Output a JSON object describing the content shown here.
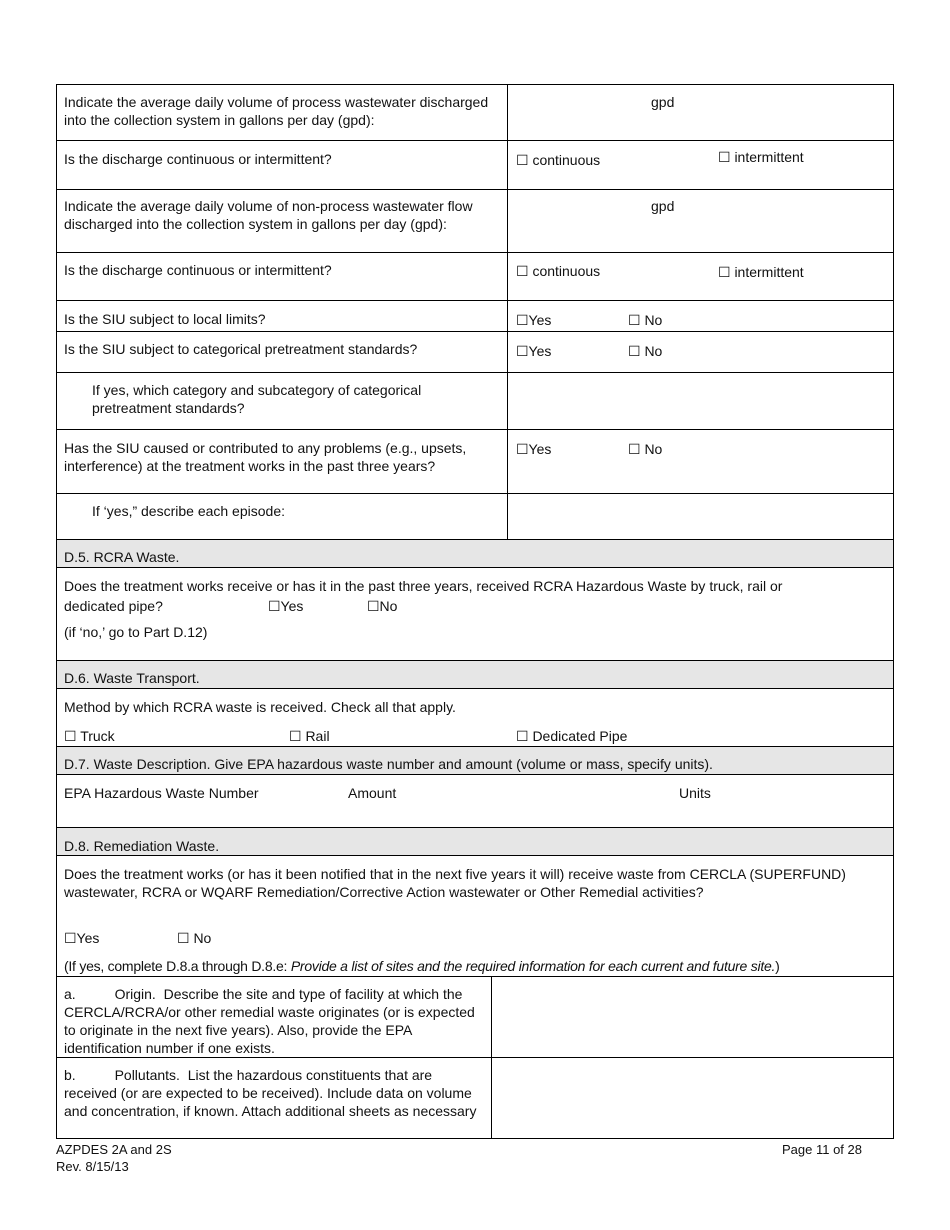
{
  "rows": {
    "process_volume": {
      "label": "Indicate the average daily volume of process wastewater discharged into the collection system in gallons per day (gpd):",
      "unit": "gpd"
    },
    "process_discharge": {
      "label": "Is the discharge continuous or intermittent?",
      "opt1": "☐ continuous",
      "opt2": "☐  intermittent"
    },
    "nonprocess_volume": {
      "label": "Indicate the average daily volume of non-process wastewater flow discharged into the collection system in gallons per day (gpd):",
      "unit": "gpd"
    },
    "nonprocess_discharge": {
      "label": "Is the discharge continuous or intermittent?",
      "opt1": "☐ continuous",
      "opt2": "☐  intermittent"
    },
    "local_limits": {
      "label": "Is the SIU subject to local limits?",
      "yes": "☐Yes",
      "no": "☐ No"
    },
    "categorical": {
      "label": "Is the SIU subject to categorical pretreatment standards?",
      "yes": "☐Yes",
      "no": "☐ No"
    },
    "category_which": {
      "label": "If yes, which category and subcategory of categorical pretreatment standards?"
    },
    "problems": {
      "label": "Has the SIU caused or contributed to any problems (e.g., upsets, interference) at the treatment works in the past three years?",
      "yes": "☐Yes",
      "no": "☐ No"
    },
    "episodes": {
      "label": "If ‘yes,” describe each episode:"
    }
  },
  "d5": {
    "header": "D.5.  RCRA Waste.",
    "question": "Does the treatment works receive or has it in the past three years, received RCRA Hazardous Waste by truck, rail or",
    "question2": "dedicated pipe?",
    "yes": "☐Yes",
    "no": "☐No",
    "note": "(if ‘no,’ go to Part D.12)"
  },
  "d6": {
    "header": "D.6.  Waste Transport.",
    "question": "Method by which RCRA waste is received.  Check all that apply.",
    "truck": "☐ Truck",
    "rail": "☐ Rail",
    "pipe": "☐ Dedicated Pipe"
  },
  "d7": {
    "header": "D.7.  Waste Description.  Give EPA hazardous waste number and amount (volume or mass, specify units).",
    "col1": "EPA Hazardous Waste Number",
    "col2": "Amount",
    "col3": "Units"
  },
  "d8": {
    "header": "D.8.  Remediation Waste.",
    "question": "Does the treatment works (or has it been notified that in the next five years it will) receive waste from CERCLA (SUPERFUND) wastewater, RCRA or WQARF Remediation/Corrective Action wastewater or Other Remedial activities?",
    "yes": "☐Yes",
    "no": "☐ No",
    "note_prefix": "(If yes, complete D.8.a through D.8.e: ",
    "note_italic": "Provide a list of sites and the required information for each current and future site.",
    "note_suffix": ")",
    "a": "a.          Origin.  Describe the site and type of facility at which the CERCLA/RCRA/or other remedial waste originates (or is expected to originate in the next five years). Also, provide the EPA identification number if one exists.",
    "b": "b.          Pollutants.  List the hazardous constituents that are received (or are expected to be received). Include data on volume and concentration, if known. Attach additional sheets as necessary"
  },
  "footer": {
    "form": "AZPDES 2A and 2S",
    "rev": "Rev. 8/15/13",
    "page": "Page 11 of 28"
  }
}
